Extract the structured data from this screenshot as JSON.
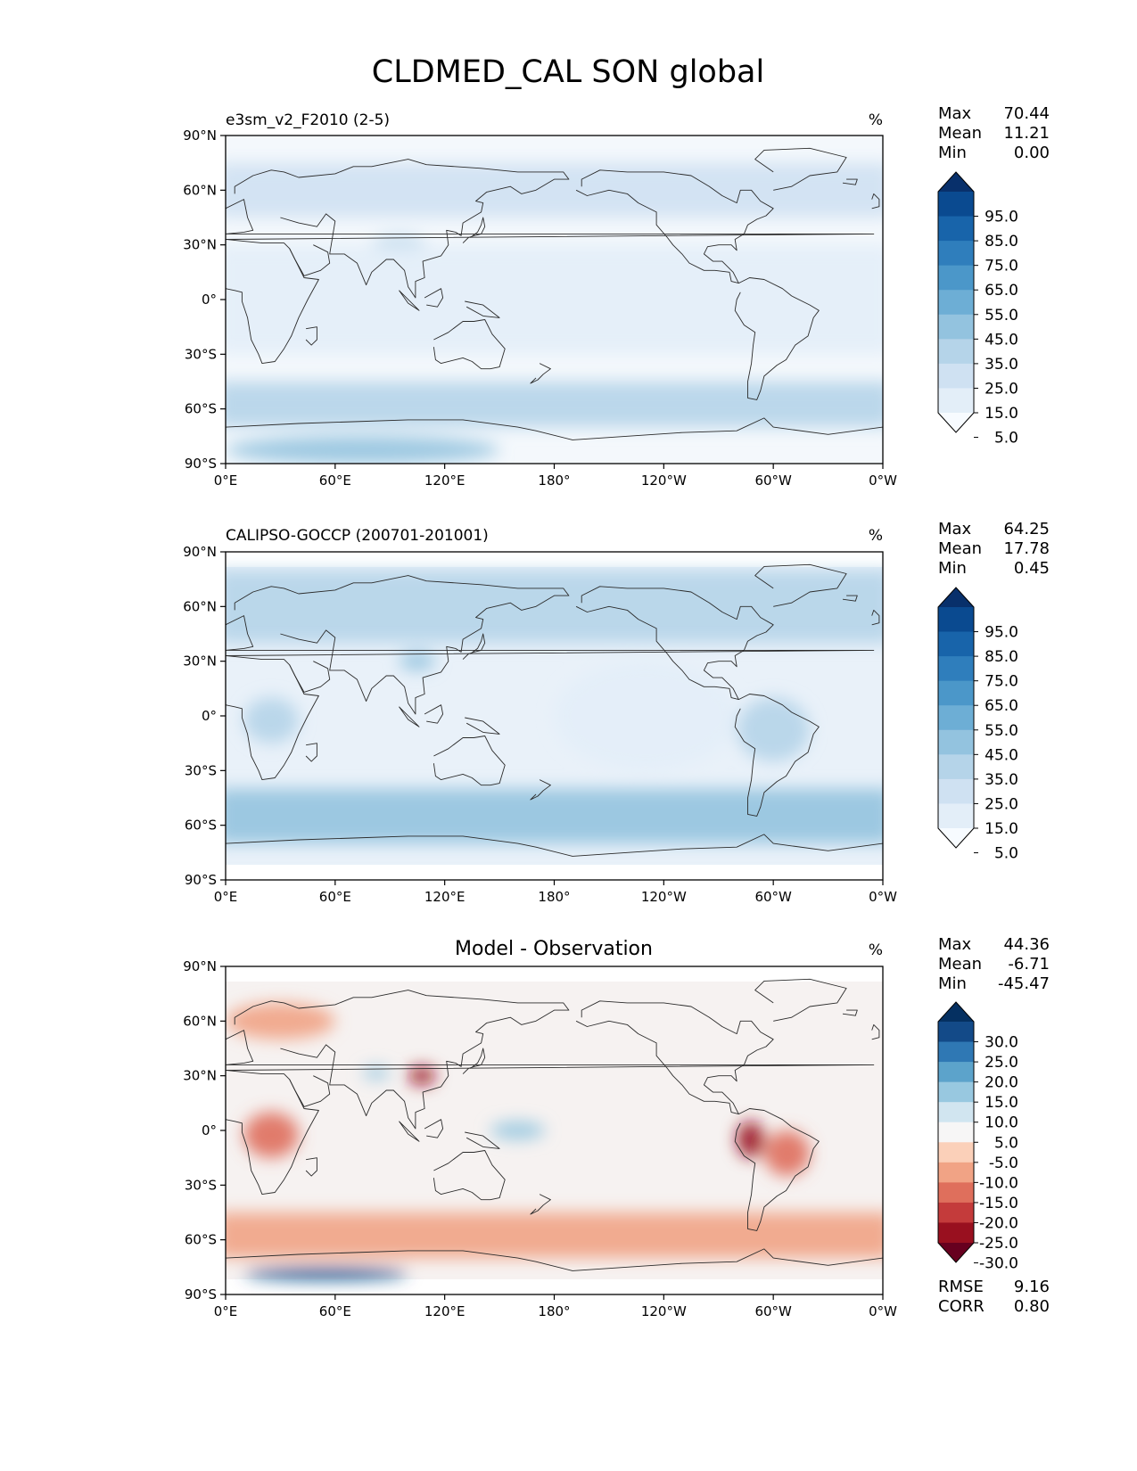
{
  "title": "CLDMED_CAL SON global",
  "colors": {
    "blues_seq": [
      "#f7fbff",
      "#e3eef8",
      "#cfe1f2",
      "#b5d4e9",
      "#93c3df",
      "#6daed5",
      "#4b97c9",
      "#2f7ebc",
      "#1864aa",
      "#0a4a90",
      "#08306b"
    ],
    "diverging": [
      "#67001f",
      "#99101f",
      "#c43b3b",
      "#df6f5c",
      "#f1a385",
      "#fbd0b9",
      "#f7f6f6",
      "#d1e5f0",
      "#98c8e0",
      "#5ca3cb",
      "#2f78b4",
      "#134a88",
      "#053061"
    ],
    "coastline": "#2b2b2b"
  },
  "longitude_ticks": [
    "0°E",
    "60°E",
    "120°E",
    "180°",
    "120°W",
    "60°W",
    "0°W"
  ],
  "latitude_ticks": [
    "90°N",
    "60°N",
    "30°N",
    "0°",
    "30°S",
    "60°S",
    "90°S"
  ],
  "panels": [
    {
      "id": "model",
      "label": "e3sm_v2_F2010 (2-5)",
      "title": "",
      "units": "%",
      "stats": [
        {
          "name": "Max",
          "value": "70.44"
        },
        {
          "name": "Mean",
          "value": "11.21"
        },
        {
          "name": "Min",
          "value": "0.00"
        }
      ],
      "colorbar": {
        "ticks": [
          "95.0",
          "85.0",
          "75.0",
          "65.0",
          "55.0",
          "45.0",
          "35.0",
          "25.0",
          "15.0",
          "5.0"
        ],
        "palette": "blues_seq"
      },
      "extra_stats": []
    },
    {
      "id": "obs",
      "label": "CALIPSO-GOCCP (200701-201001)",
      "title": "",
      "units": "%",
      "stats": [
        {
          "name": "Max",
          "value": "64.25"
        },
        {
          "name": "Mean",
          "value": "17.78"
        },
        {
          "name": "Min",
          "value": "0.45"
        }
      ],
      "colorbar": {
        "ticks": [
          "95.0",
          "85.0",
          "75.0",
          "65.0",
          "55.0",
          "45.0",
          "35.0",
          "25.0",
          "15.0",
          "5.0"
        ],
        "palette": "blues_seq"
      },
      "extra_stats": []
    },
    {
      "id": "diff",
      "label": "",
      "title": "Model - Observation",
      "units": "%",
      "stats": [
        {
          "name": "Max",
          "value": "44.36"
        },
        {
          "name": "Mean",
          "value": "-6.71"
        },
        {
          "name": "Min",
          "value": "-45.47"
        }
      ],
      "colorbar": {
        "ticks": [
          "30.0",
          "25.0",
          "20.0",
          "15.0",
          "10.0",
          "5.0",
          "-5.0",
          "-10.0",
          "-15.0",
          "-20.0",
          "-25.0",
          "-30.0"
        ],
        "palette": "diverging"
      },
      "extra_stats": [
        {
          "name": "RMSE",
          "value": "9.16"
        },
        {
          "name": "CORR",
          "value": "0.80"
        }
      ]
    }
  ],
  "chart_data": [
    {
      "type": "heatmap",
      "title": "e3sm_v2_F2010 (2-5)",
      "units": "%",
      "xlabel": "",
      "ylabel": "",
      "xlim": [
        0,
        360
      ],
      "ylim": [
        -90,
        90
      ],
      "x_tick_labels": [
        "0°E",
        "60°E",
        "120°E",
        "180°",
        "120°W",
        "60°W",
        "0°W"
      ],
      "y_tick_labels": [
        "90°N",
        "60°N",
        "30°N",
        "0°",
        "30°S",
        "60°S",
        "90°S"
      ],
      "levels": [
        5,
        15,
        25,
        35,
        45,
        55,
        65,
        75,
        85,
        95
      ],
      "max": 70.44,
      "mean": 11.21,
      "min": 0.0,
      "regions": [
        {
          "name": "Southern Ocean storm track",
          "lat": [
            -70,
            -45
          ],
          "lon": [
            0,
            360
          ],
          "value": 25
        },
        {
          "name": "Antarctic coast",
          "lat": [
            -90,
            -75
          ],
          "lon": [
            0,
            150
          ],
          "value": 40
        },
        {
          "name": "Northern mid-latitudes",
          "lat": [
            45,
            75
          ],
          "lon": [
            0,
            360
          ],
          "value": 20
        },
        {
          "name": "Tibetan Plateau",
          "lat": [
            25,
            35
          ],
          "lon": [
            80,
            110
          ],
          "value": 30
        },
        {
          "name": "Subtropics",
          "lat": [
            -30,
            30
          ],
          "lon": [
            0,
            360
          ],
          "value": 5
        }
      ]
    },
    {
      "type": "heatmap",
      "title": "CALIPSO-GOCCP (200701-201001)",
      "units": "%",
      "xlabel": "",
      "ylabel": "",
      "xlim": [
        0,
        360
      ],
      "ylim": [
        -90,
        90
      ],
      "data_lat_range": [
        -82,
        82
      ],
      "x_tick_labels": [
        "0°E",
        "60°E",
        "120°E",
        "180°",
        "120°W",
        "60°W",
        "0°W"
      ],
      "y_tick_labels": [
        "90°N",
        "60°N",
        "30°N",
        "0°",
        "30°S",
        "60°S",
        "90°S"
      ],
      "levels": [
        5,
        15,
        25,
        35,
        45,
        55,
        65,
        75,
        85,
        95
      ],
      "max": 64.25,
      "mean": 17.78,
      "min": 0.45,
      "regions": [
        {
          "name": "Southern Ocean storm track",
          "lat": [
            -70,
            -40
          ],
          "lon": [
            0,
            360
          ],
          "value": 35
        },
        {
          "name": "Northern mid-latitudes",
          "lat": [
            40,
            80
          ],
          "lon": [
            0,
            360
          ],
          "value": 28
        },
        {
          "name": "East Asia",
          "lat": [
            25,
            35
          ],
          "lon": [
            95,
            115
          ],
          "value": 40
        },
        {
          "name": "Tropical Africa",
          "lat": [
            -15,
            10
          ],
          "lon": [
            10,
            40
          ],
          "value": 25
        },
        {
          "name": "South America",
          "lat": [
            -25,
            10
          ],
          "lon": [
            280,
            320
          ],
          "value": 28
        },
        {
          "name": "Subtropical oceans",
          "lat": [
            -30,
            30
          ],
          "lon": [
            180,
            280
          ],
          "value": 8
        }
      ]
    },
    {
      "type": "heatmap",
      "title": "Model - Observation",
      "units": "%",
      "xlabel": "",
      "ylabel": "",
      "xlim": [
        0,
        360
      ],
      "ylim": [
        -90,
        90
      ],
      "data_lat_range": [
        -82,
        82
      ],
      "x_tick_labels": [
        "0°E",
        "60°E",
        "120°E",
        "180°",
        "120°W",
        "60°W",
        "0°W"
      ],
      "y_tick_labels": [
        "90°N",
        "60°N",
        "30°N",
        "0°",
        "30°S",
        "60°S",
        "90°S"
      ],
      "levels": [
        -30,
        -25,
        -20,
        -15,
        -10,
        -5,
        5,
        10,
        15,
        20,
        25,
        30
      ],
      "max": 44.36,
      "mean": -6.71,
      "min": -45.47,
      "rmse": 9.16,
      "corr": 0.8,
      "regions": [
        {
          "name": "Tropical Africa",
          "lat": [
            -15,
            10
          ],
          "lon": [
            10,
            40
          ],
          "value": -20
        },
        {
          "name": "Western South America",
          "lat": [
            -15,
            5
          ],
          "lon": [
            280,
            295
          ],
          "value": -28
        },
        {
          "name": "South America interior",
          "lat": [
            -25,
            0
          ],
          "lon": [
            295,
            320
          ],
          "value": -18
        },
        {
          "name": "East China",
          "lat": [
            25,
            35
          ],
          "lon": [
            100,
            115
          ],
          "value": -28
        },
        {
          "name": "Southern Ocean storm track",
          "lat": [
            -70,
            -45
          ],
          "lon": [
            0,
            360
          ],
          "value": -15
        },
        {
          "name": "Antarctic coast",
          "lat": [
            -82,
            -75
          ],
          "lon": [
            10,
            100
          ],
          "value": 25
        },
        {
          "name": "Tibetan Plateau",
          "lat": [
            28,
            35
          ],
          "lon": [
            75,
            90
          ],
          "value": 12
        },
        {
          "name": "Tropical West Pacific",
          "lat": [
            -5,
            5
          ],
          "lon": [
            145,
            175
          ],
          "value": 10
        },
        {
          "name": "Northern Europe",
          "lat": [
            50,
            70
          ],
          "lon": [
            0,
            60
          ],
          "value": -15
        }
      ]
    }
  ]
}
